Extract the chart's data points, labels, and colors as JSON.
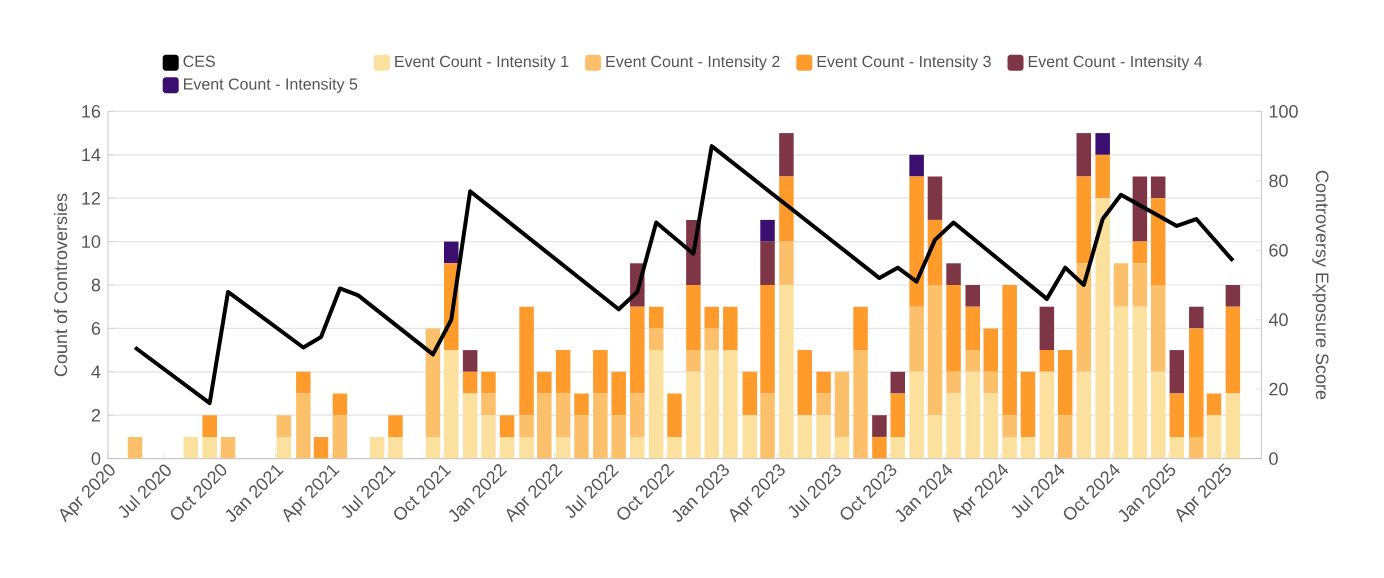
{
  "chart_data": {
    "type": "bar",
    "stacked": true,
    "grid": "y",
    "legend": "top",
    "ylabel": "Count of Controversies",
    "y2label": "Controversy Exposure Score",
    "x": [
      "2020-05-15",
      "2020-06-15",
      "2020-07-15",
      "2020-08-15",
      "2020-09-15",
      "2020-10-15",
      "2020-11-15",
      "2020-12-15",
      "2021-01-15",
      "2021-02-15",
      "2021-03-15",
      "2021-04-15",
      "2021-05-15",
      "2021-06-15",
      "2021-07-15",
      "2021-08-15",
      "2021-09-15",
      "2021-10-15",
      "2021-11-15",
      "2021-12-15",
      "2022-01-15",
      "2022-02-15",
      "2022-03-15",
      "2022-04-15",
      "2022-05-15",
      "2022-06-15",
      "2022-07-15",
      "2022-08-15",
      "2022-09-15",
      "2022-10-15",
      "2022-11-15",
      "2022-12-15",
      "2023-01-15",
      "2023-02-15",
      "2023-03-15",
      "2023-04-15",
      "2023-05-15",
      "2023-06-15",
      "2023-07-15",
      "2023-08-15",
      "2023-09-15",
      "2023-10-15",
      "2023-11-15",
      "2023-12-15",
      "2024-01-15",
      "2024-02-15",
      "2024-03-15",
      "2024-04-15",
      "2024-05-15",
      "2024-06-15",
      "2024-07-15",
      "2024-08-15",
      "2024-09-15",
      "2024-10-15",
      "2024-11-15",
      "2024-12-15",
      "2025-01-15",
      "2025-02-15",
      "2025-03-15",
      "2025-04-15"
    ],
    "xlim": [
      "2020-04-01",
      "2025-06-01"
    ],
    "xticks": [
      {
        "value": "2020-04-01",
        "label": "Apr 2020"
      },
      {
        "value": "2020-07-01",
        "label": "Jul 2020"
      },
      {
        "value": "2020-10-01",
        "label": "Oct 2020"
      },
      {
        "value": "2021-01-01",
        "label": "Jan 2021"
      },
      {
        "value": "2021-04-01",
        "label": "Apr 2021"
      },
      {
        "value": "2021-07-01",
        "label": "Jul 2021"
      },
      {
        "value": "2021-10-01",
        "label": "Oct 2021"
      },
      {
        "value": "2022-01-01",
        "label": "Jan 2022"
      },
      {
        "value": "2022-04-01",
        "label": "Apr 2022"
      },
      {
        "value": "2022-07-01",
        "label": "Jul 2022"
      },
      {
        "value": "2022-10-01",
        "label": "Oct 2022"
      },
      {
        "value": "2023-01-01",
        "label": "Jan 2023"
      },
      {
        "value": "2023-04-01",
        "label": "Apr 2023"
      },
      {
        "value": "2023-07-01",
        "label": "Jul 2023"
      },
      {
        "value": "2023-10-01",
        "label": "Oct 2023"
      },
      {
        "value": "2024-01-01",
        "label": "Jan 2024"
      },
      {
        "value": "2024-04-01",
        "label": "Apr 2024"
      },
      {
        "value": "2024-07-01",
        "label": "Jul 2024"
      },
      {
        "value": "2024-10-01",
        "label": "Oct 2024"
      },
      {
        "value": "2025-01-01",
        "label": "Jan 2025"
      },
      {
        "value": "2025-04-01",
        "label": "Apr 2025"
      }
    ],
    "ylim": [
      0,
      16
    ],
    "yticks": [
      0,
      2,
      4,
      6,
      8,
      10,
      12,
      14,
      16
    ],
    "y2lim": [
      0,
      100
    ],
    "y2ticks": [
      0,
      20,
      40,
      60,
      80,
      100
    ],
    "series": [
      {
        "name": "CES",
        "type": "line",
        "axis": "y2",
        "color": "#000000",
        "x": [
          "2020-05-15",
          "2020-09-15",
          "2020-10-15",
          "2021-02-15",
          "2021-03-15",
          "2021-04-15",
          "2021-05-15",
          "2021-09-15",
          "2021-10-15",
          "2021-11-15",
          "2022-07-15",
          "2022-08-15",
          "2022-09-15",
          "2022-11-15",
          "2022-12-15",
          "2023-09-15",
          "2023-10-15",
          "2023-11-15",
          "2023-12-15",
          "2024-01-15",
          "2024-06-15",
          "2024-07-15",
          "2024-08-15",
          "2024-09-15",
          "2024-10-15",
          "2025-01-15",
          "2025-02-15",
          "2025-04-15"
        ],
        "values": [
          32,
          16,
          48,
          32,
          35,
          49,
          47,
          30,
          40,
          77,
          43,
          48,
          68,
          59,
          90,
          52,
          55,
          51,
          63,
          68,
          46,
          55,
          50,
          69,
          76,
          67,
          69,
          57
        ]
      },
      {
        "name": "Event Count - Intensity 1",
        "color": "#fbe09e",
        "values": [
          0,
          0,
          0,
          1,
          1,
          0,
          0,
          0,
          1,
          0,
          0,
          0,
          0,
          1,
          1,
          0,
          1,
          5,
          3,
          2,
          1,
          1,
          0,
          1,
          0,
          0,
          0,
          1,
          5,
          1,
          4,
          5,
          5,
          2,
          0,
          8,
          2,
          2,
          1,
          0,
          0,
          1,
          4,
          2,
          3,
          4,
          3,
          1,
          1,
          4,
          0,
          4,
          12,
          7,
          7,
          4,
          1,
          0,
          2,
          3
        ]
      },
      {
        "name": "Event Count - Intensity 2",
        "color": "#fdc06a",
        "values": [
          1,
          0,
          0,
          0,
          0,
          1,
          0,
          0,
          1,
          3,
          0,
          2,
          0,
          0,
          0,
          0,
          5,
          0,
          0,
          1,
          0,
          1,
          3,
          2,
          2,
          3,
          2,
          2,
          1,
          0,
          1,
          1,
          0,
          0,
          3,
          2,
          0,
          1,
          3,
          5,
          0,
          0,
          3,
          6,
          1,
          1,
          1,
          1,
          0,
          0,
          2,
          5,
          0,
          2,
          2,
          4,
          0,
          1,
          0,
          0
        ]
      },
      {
        "name": "Event Count - Intensity 3",
        "color": "#fe9b2b",
        "values": [
          0,
          0,
          0,
          0,
          1,
          0,
          0,
          0,
          0,
          1,
          1,
          1,
          0,
          0,
          1,
          0,
          0,
          4,
          1,
          1,
          1,
          5,
          1,
          2,
          1,
          2,
          2,
          4,
          1,
          2,
          3,
          1,
          2,
          2,
          5,
          3,
          3,
          1,
          0,
          2,
          1,
          2,
          6,
          3,
          4,
          2,
          2,
          6,
          3,
          1,
          3,
          4,
          2,
          0,
          1,
          4,
          2,
          5,
          1,
          4
        ]
      },
      {
        "name": "Event Count - Intensity 4",
        "color": "#7e3545",
        "values": [
          0,
          0,
          0,
          0,
          0,
          0,
          0,
          0,
          0,
          0,
          0,
          0,
          0,
          0,
          0,
          0,
          0,
          0,
          1,
          0,
          0,
          0,
          0,
          0,
          0,
          0,
          0,
          2,
          0,
          0,
          3,
          0,
          0,
          0,
          2,
          2,
          0,
          0,
          0,
          0,
          1,
          1,
          0,
          2,
          1,
          1,
          0,
          0,
          0,
          2,
          0,
          2,
          0,
          0,
          3,
          1,
          2,
          1,
          0,
          1
        ]
      },
      {
        "name": "Event Count - Intensity 5",
        "color": "#3b0f6f",
        "values": [
          0,
          0,
          0,
          0,
          0,
          0,
          0,
          0,
          0,
          0,
          0,
          0,
          0,
          0,
          0,
          0,
          0,
          1,
          0,
          0,
          0,
          0,
          0,
          0,
          0,
          0,
          0,
          0,
          0,
          0,
          0,
          0,
          0,
          0,
          1,
          0,
          0,
          0,
          0,
          0,
          0,
          0,
          1,
          0,
          0,
          0,
          0,
          0,
          0,
          0,
          0,
          0,
          1,
          0,
          0,
          0,
          0,
          0,
          0,
          0
        ]
      }
    ]
  }
}
